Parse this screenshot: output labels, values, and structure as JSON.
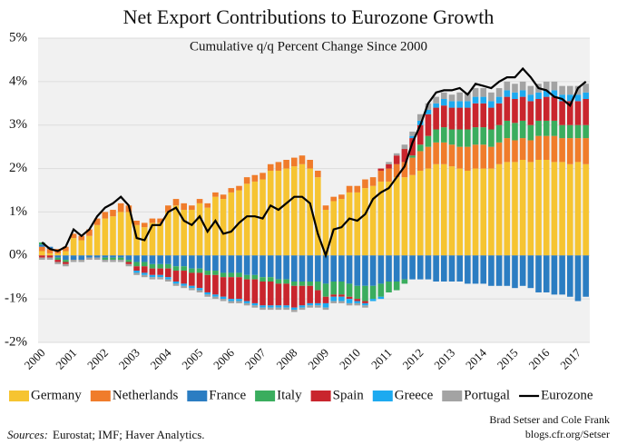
{
  "chart_data": {
    "type": "stacked_bar_line",
    "title": "Net Export Contributions to Eurozone Growth",
    "subtitle": "Cumulative q/q Percent Change Since 2000",
    "sources_label": "Sources:",
    "sources": "Eurostat; IMF; Haver Analytics.",
    "credit": [
      "Brad Setser and Cole Frank",
      "blogs.cfr.org/Setser"
    ],
    "categories": [
      "2000",
      null,
      null,
      null,
      "2001",
      null,
      null,
      null,
      "2002",
      null,
      null,
      null,
      "2003",
      null,
      null,
      null,
      "2004",
      null,
      null,
      null,
      "2005",
      null,
      null,
      null,
      "2006",
      null,
      null,
      null,
      "2007",
      null,
      null,
      null,
      "2008",
      null,
      null,
      null,
      "2009",
      null,
      null,
      null,
      "2010",
      null,
      null,
      null,
      "2011",
      null,
      null,
      null,
      "2012",
      null,
      null,
      null,
      "2013",
      null,
      null,
      null,
      "2014",
      null,
      null,
      null,
      "2015",
      null,
      null,
      null,
      "2016",
      null,
      null,
      null,
      "2017",
      null
    ],
    "ylim": [
      -2,
      5
    ],
    "yticks": [
      {
        "value": -2,
        "label": "-2%"
      },
      {
        "value": -1,
        "label": "-1%"
      },
      {
        "value": 0,
        "label": "0%"
      },
      {
        "value": 1,
        "label": "1%"
      },
      {
        "value": 2,
        "label": "2%"
      },
      {
        "value": 3,
        "label": "3%"
      },
      {
        "value": 4,
        "label": "4%"
      },
      {
        "value": 5,
        "label": "5%"
      }
    ],
    "grid": true,
    "series": [
      {
        "name": "Germany",
        "color": "#f6c431",
        "type": "bar",
        "values": [
          0.1,
          0.05,
          0.05,
          0.1,
          0.4,
          0.35,
          0.45,
          0.7,
          0.85,
          0.9,
          1.0,
          1.0,
          0.7,
          0.65,
          0.75,
          0.75,
          1.0,
          1.15,
          1.05,
          1.05,
          1.2,
          1.1,
          1.35,
          1.3,
          1.45,
          1.5,
          1.65,
          1.7,
          1.75,
          1.95,
          1.95,
          2.0,
          2.05,
          2.1,
          2.0,
          1.8,
          1.05,
          1.25,
          1.3,
          1.45,
          1.45,
          1.55,
          1.6,
          1.7,
          1.7,
          1.8,
          1.8,
          1.85,
          1.95,
          2.0,
          2.1,
          2.1,
          2.05,
          2.0,
          1.95,
          2.0,
          2.0,
          2.0,
          2.1,
          2.15,
          2.15,
          2.2,
          2.15,
          2.2,
          2.2,
          2.15,
          2.15,
          2.1,
          2.15,
          2.1
        ]
      },
      {
        "name": "Netherlands",
        "color": "#f07c2b",
        "type": "bar",
        "values": [
          0.1,
          0.1,
          0.1,
          0.1,
          0.1,
          0.1,
          0.15,
          0.15,
          0.15,
          0.15,
          0.2,
          0.15,
          0.1,
          0.1,
          0.1,
          0.1,
          0.15,
          0.15,
          0.15,
          0.1,
          0.1,
          0.1,
          0.1,
          0.1,
          0.1,
          0.1,
          0.15,
          0.15,
          0.15,
          0.15,
          0.2,
          0.2,
          0.2,
          0.2,
          0.2,
          0.15,
          0.1,
          0.1,
          0.1,
          0.15,
          0.15,
          0.2,
          0.2,
          0.25,
          0.3,
          0.3,
          0.35,
          0.4,
          0.45,
          0.5,
          0.5,
          0.5,
          0.5,
          0.5,
          0.55,
          0.55,
          0.55,
          0.5,
          0.5,
          0.55,
          0.5,
          0.5,
          0.5,
          0.55,
          0.55,
          0.6,
          0.55,
          0.6,
          0.55,
          0.6
        ]
      },
      {
        "name": "France",
        "color": "#2b7dc2",
        "type": "bar",
        "values": [
          0.05,
          0.05,
          -0.05,
          -0.1,
          -0.1,
          -0.1,
          -0.05,
          -0.05,
          -0.05,
          -0.05,
          -0.05,
          -0.1,
          -0.15,
          -0.15,
          -0.2,
          -0.2,
          -0.2,
          -0.25,
          -0.25,
          -0.3,
          -0.3,
          -0.35,
          -0.35,
          -0.4,
          -0.4,
          -0.4,
          -0.45,
          -0.45,
          -0.5,
          -0.5,
          -0.55,
          -0.55,
          -0.6,
          -0.6,
          -0.6,
          -0.6,
          -0.65,
          -0.6,
          -0.6,
          -0.65,
          -0.7,
          -0.7,
          -0.7,
          -0.65,
          -0.6,
          -0.6,
          -0.55,
          -0.55,
          -0.55,
          -0.55,
          -0.6,
          -0.6,
          -0.6,
          -0.6,
          -0.65,
          -0.65,
          -0.65,
          -0.7,
          -0.7,
          -0.7,
          -0.75,
          -0.7,
          -0.75,
          -0.85,
          -0.85,
          -0.9,
          -0.9,
          -0.95,
          -1.05,
          -0.95
        ]
      },
      {
        "name": "Italy",
        "color": "#3aad5e",
        "type": "bar",
        "values": [
          0.05,
          0,
          -0.05,
          -0.05,
          0,
          0,
          0,
          0,
          -0.05,
          -0.05,
          -0.05,
          -0.05,
          -0.1,
          -0.1,
          -0.1,
          -0.1,
          -0.1,
          -0.1,
          -0.1,
          -0.1,
          -0.1,
          -0.1,
          -0.1,
          -0.1,
          -0.1,
          -0.1,
          -0.1,
          -0.1,
          -0.1,
          -0.1,
          -0.1,
          -0.1,
          -0.1,
          -0.1,
          -0.1,
          -0.2,
          -0.3,
          -0.3,
          -0.3,
          -0.3,
          -0.3,
          -0.35,
          -0.3,
          -0.3,
          -0.25,
          -0.2,
          -0.1,
          0.05,
          0.15,
          0.25,
          0.3,
          0.35,
          0.35,
          0.4,
          0.4,
          0.4,
          0.4,
          0.4,
          0.4,
          0.4,
          0.4,
          0.4,
          0.35,
          0.35,
          0.35,
          0.35,
          0.3,
          0.3,
          0.3,
          0.3
        ]
      },
      {
        "name": "Spain",
        "color": "#c9252d",
        "type": "bar",
        "values": [
          -0.05,
          -0.05,
          -0.05,
          -0.05,
          0,
          0,
          0,
          0,
          0,
          0,
          0,
          -0.05,
          -0.1,
          -0.15,
          -0.15,
          -0.15,
          -0.2,
          -0.25,
          -0.3,
          -0.3,
          -0.35,
          -0.4,
          -0.45,
          -0.45,
          -0.5,
          -0.5,
          -0.5,
          -0.55,
          -0.55,
          -0.55,
          -0.5,
          -0.5,
          -0.5,
          -0.45,
          -0.4,
          -0.3,
          -0.15,
          -0.05,
          -0.05,
          -0.05,
          -0.05,
          -0.05,
          0,
          0.05,
          0.1,
          0.2,
          0.3,
          0.4,
          0.45,
          0.5,
          0.5,
          0.5,
          0.5,
          0.5,
          0.5,
          0.55,
          0.55,
          0.5,
          0.5,
          0.55,
          0.55,
          0.55,
          0.55,
          0.5,
          0.55,
          0.55,
          0.55,
          0.55,
          0.55,
          0.6
        ]
      },
      {
        "name": "Greece",
        "color": "#1daaf0",
        "type": "bar",
        "values": [
          0,
          0,
          0,
          0,
          0,
          0,
          0,
          0,
          0,
          0,
          0,
          0,
          -0.05,
          -0.05,
          -0.05,
          -0.05,
          -0.05,
          -0.05,
          -0.05,
          -0.05,
          -0.05,
          -0.05,
          -0.05,
          -0.05,
          -0.05,
          -0.05,
          -0.05,
          -0.05,
          -0.05,
          -0.05,
          -0.05,
          -0.05,
          -0.05,
          -0.05,
          -0.05,
          -0.05,
          -0.1,
          -0.1,
          -0.1,
          -0.1,
          -0.05,
          -0.05,
          -0.05,
          -0.05,
          0,
          0,
          0,
          0.05,
          0.1,
          0.1,
          0.1,
          0.15,
          0.15,
          0.15,
          0.15,
          0.15,
          0.15,
          0.15,
          0.15,
          0.15,
          0.15,
          0.15,
          0.15,
          0.15,
          0.15,
          0.15,
          0.15,
          0.15,
          0.15,
          0.15
        ]
      },
      {
        "name": "Portugal",
        "color": "#a3a3a3",
        "type": "bar",
        "values": [
          -0.05,
          -0.05,
          -0.05,
          -0.05,
          -0.05,
          -0.05,
          -0.05,
          -0.05,
          -0.05,
          -0.05,
          -0.05,
          -0.05,
          -0.05,
          -0.05,
          -0.05,
          -0.05,
          -0.05,
          -0.05,
          -0.05,
          -0.05,
          -0.05,
          -0.05,
          -0.05,
          -0.05,
          -0.05,
          -0.05,
          -0.05,
          -0.05,
          -0.05,
          -0.05,
          -0.05,
          -0.05,
          -0.05,
          -0.05,
          -0.05,
          -0.05,
          -0.05,
          -0.05,
          -0.05,
          -0.05,
          -0.05,
          -0.05,
          0,
          0,
          0.05,
          0.05,
          0.1,
          0.1,
          0.15,
          0.15,
          0.15,
          0.15,
          0.15,
          0.2,
          0.2,
          0.2,
          0.2,
          0.2,
          0.2,
          0.2,
          0.2,
          0.2,
          0.2,
          0.2,
          0.2,
          0.2,
          0.2,
          0.2,
          0.2,
          0.2
        ]
      },
      {
        "name": "Eurozone",
        "color": "#000000",
        "type": "line",
        "values": [
          0.3,
          0.15,
          0.1,
          0.2,
          0.6,
          0.45,
          0.6,
          0.9,
          1.1,
          1.2,
          1.35,
          1.15,
          0.4,
          0.35,
          0.7,
          0.7,
          1.0,
          1.1,
          0.8,
          0.7,
          0.9,
          0.55,
          0.8,
          0.5,
          0.55,
          0.75,
          0.9,
          0.9,
          0.85,
          1.15,
          1.05,
          1.2,
          1.35,
          1.35,
          1.2,
          0.5,
          0.0,
          0.6,
          0.65,
          0.85,
          0.8,
          0.95,
          1.3,
          1.45,
          1.55,
          1.8,
          2.05,
          2.6,
          3.0,
          3.5,
          3.75,
          3.8,
          3.8,
          3.85,
          3.7,
          3.95,
          3.9,
          3.85,
          4.0,
          4.1,
          4.1,
          4.3,
          4.1,
          3.85,
          3.8,
          3.65,
          3.6,
          3.45,
          3.85,
          4.0
        ]
      }
    ]
  }
}
